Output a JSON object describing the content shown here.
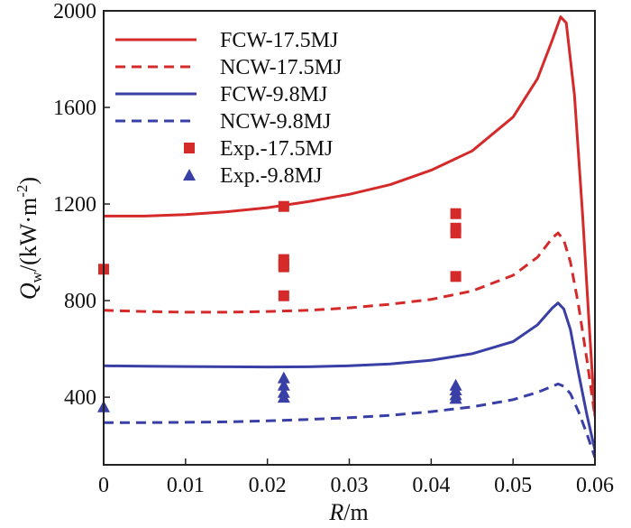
{
  "chart_data": {
    "type": "line",
    "xlim": [
      0,
      0.06
    ],
    "ylim": [
      120,
      2000
    ],
    "x_ticks": [
      "0",
      "0.01",
      "0.02",
      "0.03",
      "0.04",
      "0.05",
      "0.06"
    ],
    "x_tick_values": [
      0,
      0.01,
      0.02,
      0.03,
      0.04,
      0.05,
      0.06
    ],
    "y_ticks": [
      "400",
      "800",
      "1200",
      "1600",
      "2000"
    ],
    "y_tick_values": [
      400,
      800,
      1200,
      1600,
      2000
    ],
    "xlabel": {
      "var": "R",
      "unit": "/m"
    },
    "ylabel": {
      "var": "Q",
      "sub": "w",
      "unit_pre": "/(kW·m",
      "unit_sup": "-2",
      "unit_post": ")"
    },
    "legend_position": "top-left",
    "series": [
      {
        "name": "FCW-17.5MJ",
        "style": "solid",
        "color": "#d42a2a",
        "x": [
          0,
          0.005,
          0.01,
          0.015,
          0.02,
          0.025,
          0.03,
          0.035,
          0.04,
          0.045,
          0.05,
          0.053,
          0.0548,
          0.0558,
          0.0565,
          0.0575,
          0.0585,
          0.0593,
          0.06
        ],
        "y": [
          1150,
          1150,
          1156,
          1168,
          1185,
          1210,
          1240,
          1280,
          1340,
          1420,
          1560,
          1720,
          1880,
          1975,
          1950,
          1650,
          1150,
          700,
          320
        ]
      },
      {
        "name": "NCW-17.5MJ",
        "style": "dashed",
        "color": "#d42a2a",
        "x": [
          0,
          0.005,
          0.01,
          0.015,
          0.02,
          0.025,
          0.03,
          0.035,
          0.04,
          0.045,
          0.05,
          0.053,
          0.0548,
          0.0555,
          0.0562,
          0.057,
          0.058,
          0.059,
          0.06
        ],
        "y": [
          760,
          755,
          752,
          752,
          755,
          760,
          770,
          785,
          805,
          840,
          905,
          980,
          1060,
          1080,
          1050,
          960,
          780,
          560,
          320
        ]
      },
      {
        "name": "FCW-9.8MJ",
        "style": "solid",
        "color": "#3a3fa6",
        "x": [
          0,
          0.005,
          0.01,
          0.015,
          0.02,
          0.025,
          0.03,
          0.035,
          0.04,
          0.045,
          0.05,
          0.053,
          0.0548,
          0.0555,
          0.0562,
          0.057,
          0.058,
          0.059,
          0.06
        ],
        "y": [
          530,
          528,
          527,
          526,
          525,
          526,
          530,
          538,
          553,
          580,
          630,
          700,
          770,
          790,
          765,
          680,
          500,
          330,
          180
        ]
      },
      {
        "name": "NCW-9.8MJ",
        "style": "dashed",
        "color": "#3a3fa6",
        "x": [
          0,
          0.005,
          0.01,
          0.015,
          0.02,
          0.025,
          0.03,
          0.035,
          0.04,
          0.045,
          0.05,
          0.053,
          0.0548,
          0.0555,
          0.0562,
          0.057,
          0.058,
          0.059,
          0.06
        ],
        "y": [
          295,
          295,
          296,
          298,
          302,
          308,
          315,
          325,
          340,
          360,
          390,
          420,
          445,
          455,
          445,
          415,
          340,
          250,
          150
        ]
      },
      {
        "name": "Exp.-17.5MJ",
        "style": "square",
        "color": "#d42a2a",
        "x": [
          0,
          0.022,
          0.022,
          0.022,
          0.022,
          0.022,
          0.043,
          0.043,
          0.043,
          0.043
        ],
        "y": [
          930,
          1190,
          970,
          950,
          940,
          820,
          1160,
          1100,
          1080,
          900
        ]
      },
      {
        "name": "Exp.-9.8MJ",
        "style": "triangle",
        "color": "#3a3fa6",
        "x": [
          0,
          0.022,
          0.022,
          0.022,
          0.022,
          0.043,
          0.043,
          0.043,
          0.043
        ],
        "y": [
          360,
          480,
          450,
          420,
          400,
          450,
          430,
          410,
          395
        ]
      }
    ]
  }
}
